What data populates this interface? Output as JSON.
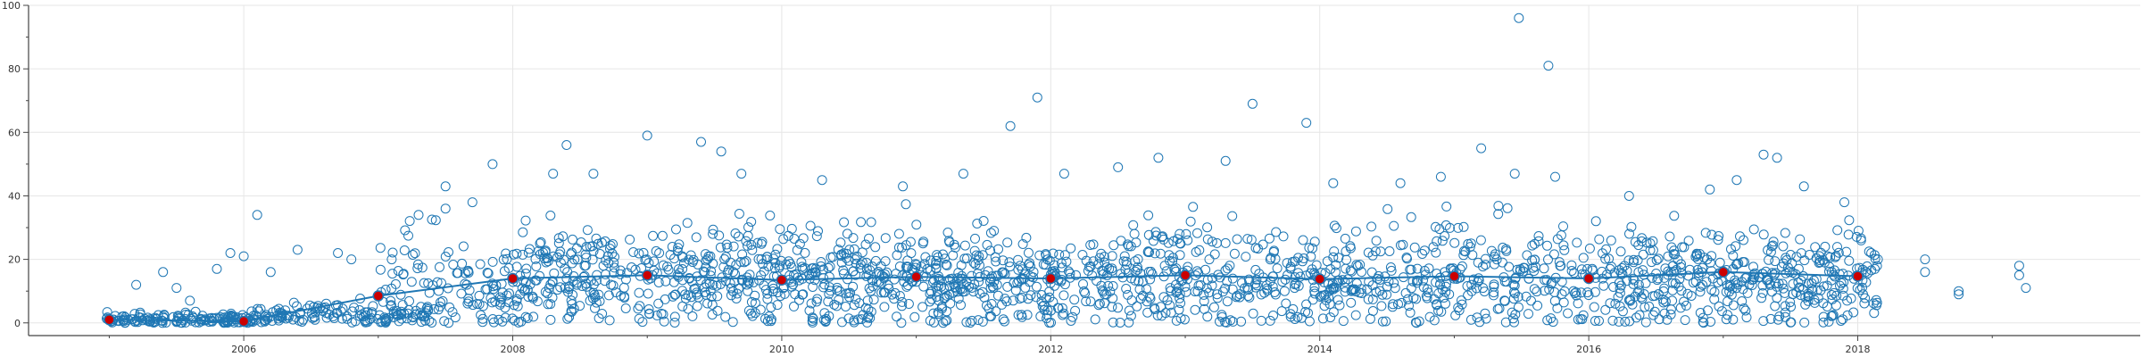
{
  "chart_data": {
    "type": "scatter",
    "title": "",
    "xlabel": "",
    "ylabel": "",
    "xlim": [
      2004.4,
      2020.1
    ],
    "ylim": [
      -4,
      100
    ],
    "grid": true,
    "x_ticks": [
      2006,
      2008,
      2010,
      2012,
      2014,
      2016,
      2018
    ],
    "x_tick_labels": [
      "2006",
      "2008",
      "2010",
      "2012",
      "2014",
      "2016",
      "2018"
    ],
    "y_ticks": [
      0,
      20,
      40,
      60,
      80,
      100
    ],
    "y_tick_labels": [
      "0",
      "20",
      "40",
      "60",
      "80",
      "100"
    ],
    "series": [
      {
        "style": "scatter-open-circles",
        "color": "#1f77b4",
        "bands": [
          {
            "x_start": 2004.98,
            "x_end": 2006.1,
            "y_median": 0.5,
            "y_spread": 1.5,
            "count": 150
          },
          {
            "x_start": 2006.1,
            "x_end": 2007.4,
            "y_median": 1.0,
            "y_spread": 3.0,
            "count": 130
          },
          {
            "x_start": 2007.0,
            "x_end": 2008.0,
            "y_median": 10,
            "y_spread": 9,
            "count": 120
          },
          {
            "x_start": 2008.0,
            "x_end": 2018.15,
            "y_median": 14,
            "y_spread": 8,
            "count": 1900
          }
        ],
        "scattered_points": [
          {
            "x": 2005.2,
            "y": 12
          },
          {
            "x": 2005.4,
            "y": 16
          },
          {
            "x": 2005.5,
            "y": 11
          },
          {
            "x": 2005.6,
            "y": 7
          },
          {
            "x": 2005.8,
            "y": 17
          },
          {
            "x": 2005.9,
            "y": 22
          },
          {
            "x": 2006.0,
            "y": 21
          },
          {
            "x": 2006.1,
            "y": 34
          },
          {
            "x": 2006.2,
            "y": 16
          },
          {
            "x": 2006.4,
            "y": 23
          },
          {
            "x": 2006.7,
            "y": 22
          },
          {
            "x": 2006.8,
            "y": 20
          },
          {
            "x": 2007.1,
            "y": 20
          },
          {
            "x": 2007.3,
            "y": 34
          },
          {
            "x": 2007.5,
            "y": 36
          },
          {
            "x": 2007.5,
            "y": 43
          },
          {
            "x": 2007.7,
            "y": 38
          },
          {
            "x": 2007.85,
            "y": 50
          },
          {
            "x": 2008.3,
            "y": 47
          },
          {
            "x": 2008.4,
            "y": 56
          },
          {
            "x": 2008.6,
            "y": 47
          },
          {
            "x": 2009.0,
            "y": 59
          },
          {
            "x": 2009.4,
            "y": 57
          },
          {
            "x": 2009.55,
            "y": 54
          },
          {
            "x": 2009.7,
            "y": 47
          },
          {
            "x": 2010.3,
            "y": 45
          },
          {
            "x": 2010.9,
            "y": 43
          },
          {
            "x": 2011.35,
            "y": 47
          },
          {
            "x": 2011.7,
            "y": 62
          },
          {
            "x": 2011.9,
            "y": 71
          },
          {
            "x": 2012.1,
            "y": 47
          },
          {
            "x": 2012.5,
            "y": 49
          },
          {
            "x": 2012.8,
            "y": 52
          },
          {
            "x": 2013.3,
            "y": 51
          },
          {
            "x": 2013.5,
            "y": 69
          },
          {
            "x": 2013.9,
            "y": 63
          },
          {
            "x": 2014.1,
            "y": 44
          },
          {
            "x": 2014.6,
            "y": 44
          },
          {
            "x": 2014.9,
            "y": 46
          },
          {
            "x": 2015.2,
            "y": 55
          },
          {
            "x": 2015.45,
            "y": 47
          },
          {
            "x": 2015.48,
            "y": 96
          },
          {
            "x": 2015.7,
            "y": 81
          },
          {
            "x": 2015.75,
            "y": 46
          },
          {
            "x": 2016.3,
            "y": 40
          },
          {
            "x": 2016.9,
            "y": 42
          },
          {
            "x": 2017.1,
            "y": 45
          },
          {
            "x": 2017.3,
            "y": 53
          },
          {
            "x": 2017.4,
            "y": 52
          },
          {
            "x": 2017.6,
            "y": 43
          },
          {
            "x": 2017.9,
            "y": 38
          },
          {
            "x": 2018.1,
            "y": 22
          },
          {
            "x": 2018.15,
            "y": 20
          },
          {
            "x": 2018.5,
            "y": 20
          },
          {
            "x": 2018.5,
            "y": 16
          },
          {
            "x": 2018.75,
            "y": 10
          },
          {
            "x": 2018.75,
            "y": 9
          },
          {
            "x": 2019.2,
            "y": 18
          },
          {
            "x": 2019.2,
            "y": 15
          },
          {
            "x": 2019.25,
            "y": 11
          }
        ]
      },
      {
        "style": "line",
        "color": "#1f77b4",
        "x": [
          2005.0,
          2006.0,
          2007.0,
          2008.0,
          2009.0,
          2010.0,
          2011.0,
          2012.0,
          2013.0,
          2014.0,
          2015.0,
          2016.0,
          2017.0,
          2018.0
        ],
        "y": [
          1.0,
          0.5,
          8.5,
          14.0,
          15.0,
          13.5,
          14.5,
          14.0,
          15.0,
          13.8,
          14.7,
          14.0,
          16.0,
          14.7
        ]
      },
      {
        "style": "markers",
        "color": "#cc0000",
        "x": [
          2005.0,
          2006.0,
          2007.0,
          2008.0,
          2009.0,
          2010.0,
          2011.0,
          2012.0,
          2013.0,
          2014.0,
          2015.0,
          2016.0,
          2017.0,
          2018.0
        ],
        "y": [
          1.0,
          0.5,
          8.5,
          14.0,
          15.0,
          13.5,
          14.5,
          14.0,
          15.0,
          13.8,
          14.7,
          14.0,
          16.0,
          14.7
        ]
      }
    ]
  }
}
